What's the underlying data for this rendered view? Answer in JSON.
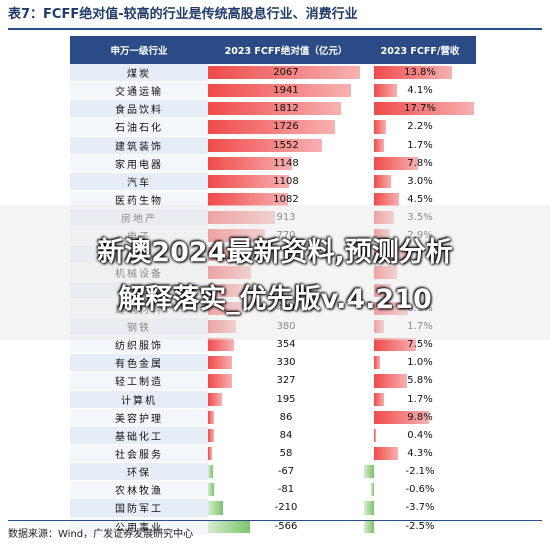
{
  "title": "表7：FCFF绝对值-较高的行业是传统高股息行业、消费行业",
  "source": "数据来源：Wind，广发证券发展研究中心",
  "columns": {
    "industry": "申万一级行业",
    "fcff_abs": "2023 FCFF绝对值（亿元）",
    "fcff_rev": "2023 FCFF/营收"
  },
  "colors": {
    "header": "#2a4b86",
    "positive": "#f04a4a",
    "negative": "#7cc46a"
  },
  "chart_data": {
    "type": "table",
    "rows": [
      {
        "industry": "煤炭",
        "fcff": "2067",
        "fcff_v": 2067,
        "ratio": "13.8%",
        "ratio_v": 13.8
      },
      {
        "industry": "交通运输",
        "fcff": "1941",
        "fcff_v": 1941,
        "ratio": "4.1%",
        "ratio_v": 4.1
      },
      {
        "industry": "食品饮料",
        "fcff": "1812",
        "fcff_v": 1812,
        "ratio": "17.7%",
        "ratio_v": 17.7
      },
      {
        "industry": "石油石化",
        "fcff": "1726",
        "fcff_v": 1726,
        "ratio": "2.2%",
        "ratio_v": 2.2
      },
      {
        "industry": "建筑装饰",
        "fcff": "1552",
        "fcff_v": 1552,
        "ratio": "1.7%",
        "ratio_v": 1.7
      },
      {
        "industry": "家用电器",
        "fcff": "1148",
        "fcff_v": 1148,
        "ratio": "7.8%",
        "ratio_v": 7.8
      },
      {
        "industry": "汽车",
        "fcff": "1108",
        "fcff_v": 1108,
        "ratio": "3.0%",
        "ratio_v": 3.0
      },
      {
        "industry": "医药生物",
        "fcff": "1082",
        "fcff_v": 1082,
        "ratio": "4.5%",
        "ratio_v": 4.5
      },
      {
        "industry": "房地产",
        "fcff": "913",
        "fcff_v": 913,
        "ratio": "3.5%",
        "ratio_v": 3.5
      },
      {
        "industry": "电子",
        "fcff": "770",
        "fcff_v": 770,
        "ratio": "2.9%",
        "ratio_v": 2.9
      },
      {
        "industry": "传媒",
        "fcff": "",
        "fcff_v": 650,
        "ratio": "",
        "ratio_v": 6.5
      },
      {
        "industry": "机械设备",
        "fcff": "",
        "fcff_v": 590,
        "ratio": "",
        "ratio_v": 4.0
      },
      {
        "industry": "",
        "fcff": "",
        "fcff_v": 530,
        "ratio": "",
        "ratio_v": 3.0
      },
      {
        "industry": "建筑材料",
        "fcff": "475",
        "fcff_v": 475,
        "ratio": "6.1%",
        "ratio_v": 6.1
      },
      {
        "industry": "钢铁",
        "fcff": "380",
        "fcff_v": 380,
        "ratio": "1.7%",
        "ratio_v": 1.7
      },
      {
        "industry": "纺织服饰",
        "fcff": "354",
        "fcff_v": 354,
        "ratio": "7.5%",
        "ratio_v": 7.5
      },
      {
        "industry": "有色金属",
        "fcff": "330",
        "fcff_v": 330,
        "ratio": "1.0%",
        "ratio_v": 1.0
      },
      {
        "industry": "轻工制造",
        "fcff": "327",
        "fcff_v": 327,
        "ratio": "5.8%",
        "ratio_v": 5.8
      },
      {
        "industry": "计算机",
        "fcff": "195",
        "fcff_v": 195,
        "ratio": "1.7%",
        "ratio_v": 1.7
      },
      {
        "industry": "美容护理",
        "fcff": "86",
        "fcff_v": 86,
        "ratio": "9.8%",
        "ratio_v": 9.8
      },
      {
        "industry": "基础化工",
        "fcff": "84",
        "fcff_v": 84,
        "ratio": "0.4%",
        "ratio_v": 0.4
      },
      {
        "industry": "社会服务",
        "fcff": "58",
        "fcff_v": 58,
        "ratio": "4.3%",
        "ratio_v": 4.3
      },
      {
        "industry": "环保",
        "fcff": "-67",
        "fcff_v": -67,
        "ratio": "-2.1%",
        "ratio_v": -2.1
      },
      {
        "industry": "农林牧渔",
        "fcff": "-81",
        "fcff_v": -81,
        "ratio": "-0.6%",
        "ratio_v": -0.6
      },
      {
        "industry": "国防军工",
        "fcff": "-210",
        "fcff_v": -210,
        "ratio": "-3.7%",
        "ratio_v": -3.7
      },
      {
        "industry": "公用事业",
        "fcff": "-566",
        "fcff_v": -566,
        "ratio": "-2.5%",
        "ratio_v": -2.5
      }
    ]
  },
  "overlay": {
    "line1": "新澳2024最新资料,预测分析",
    "line2": "解释落实_优先版v.4.210"
  }
}
